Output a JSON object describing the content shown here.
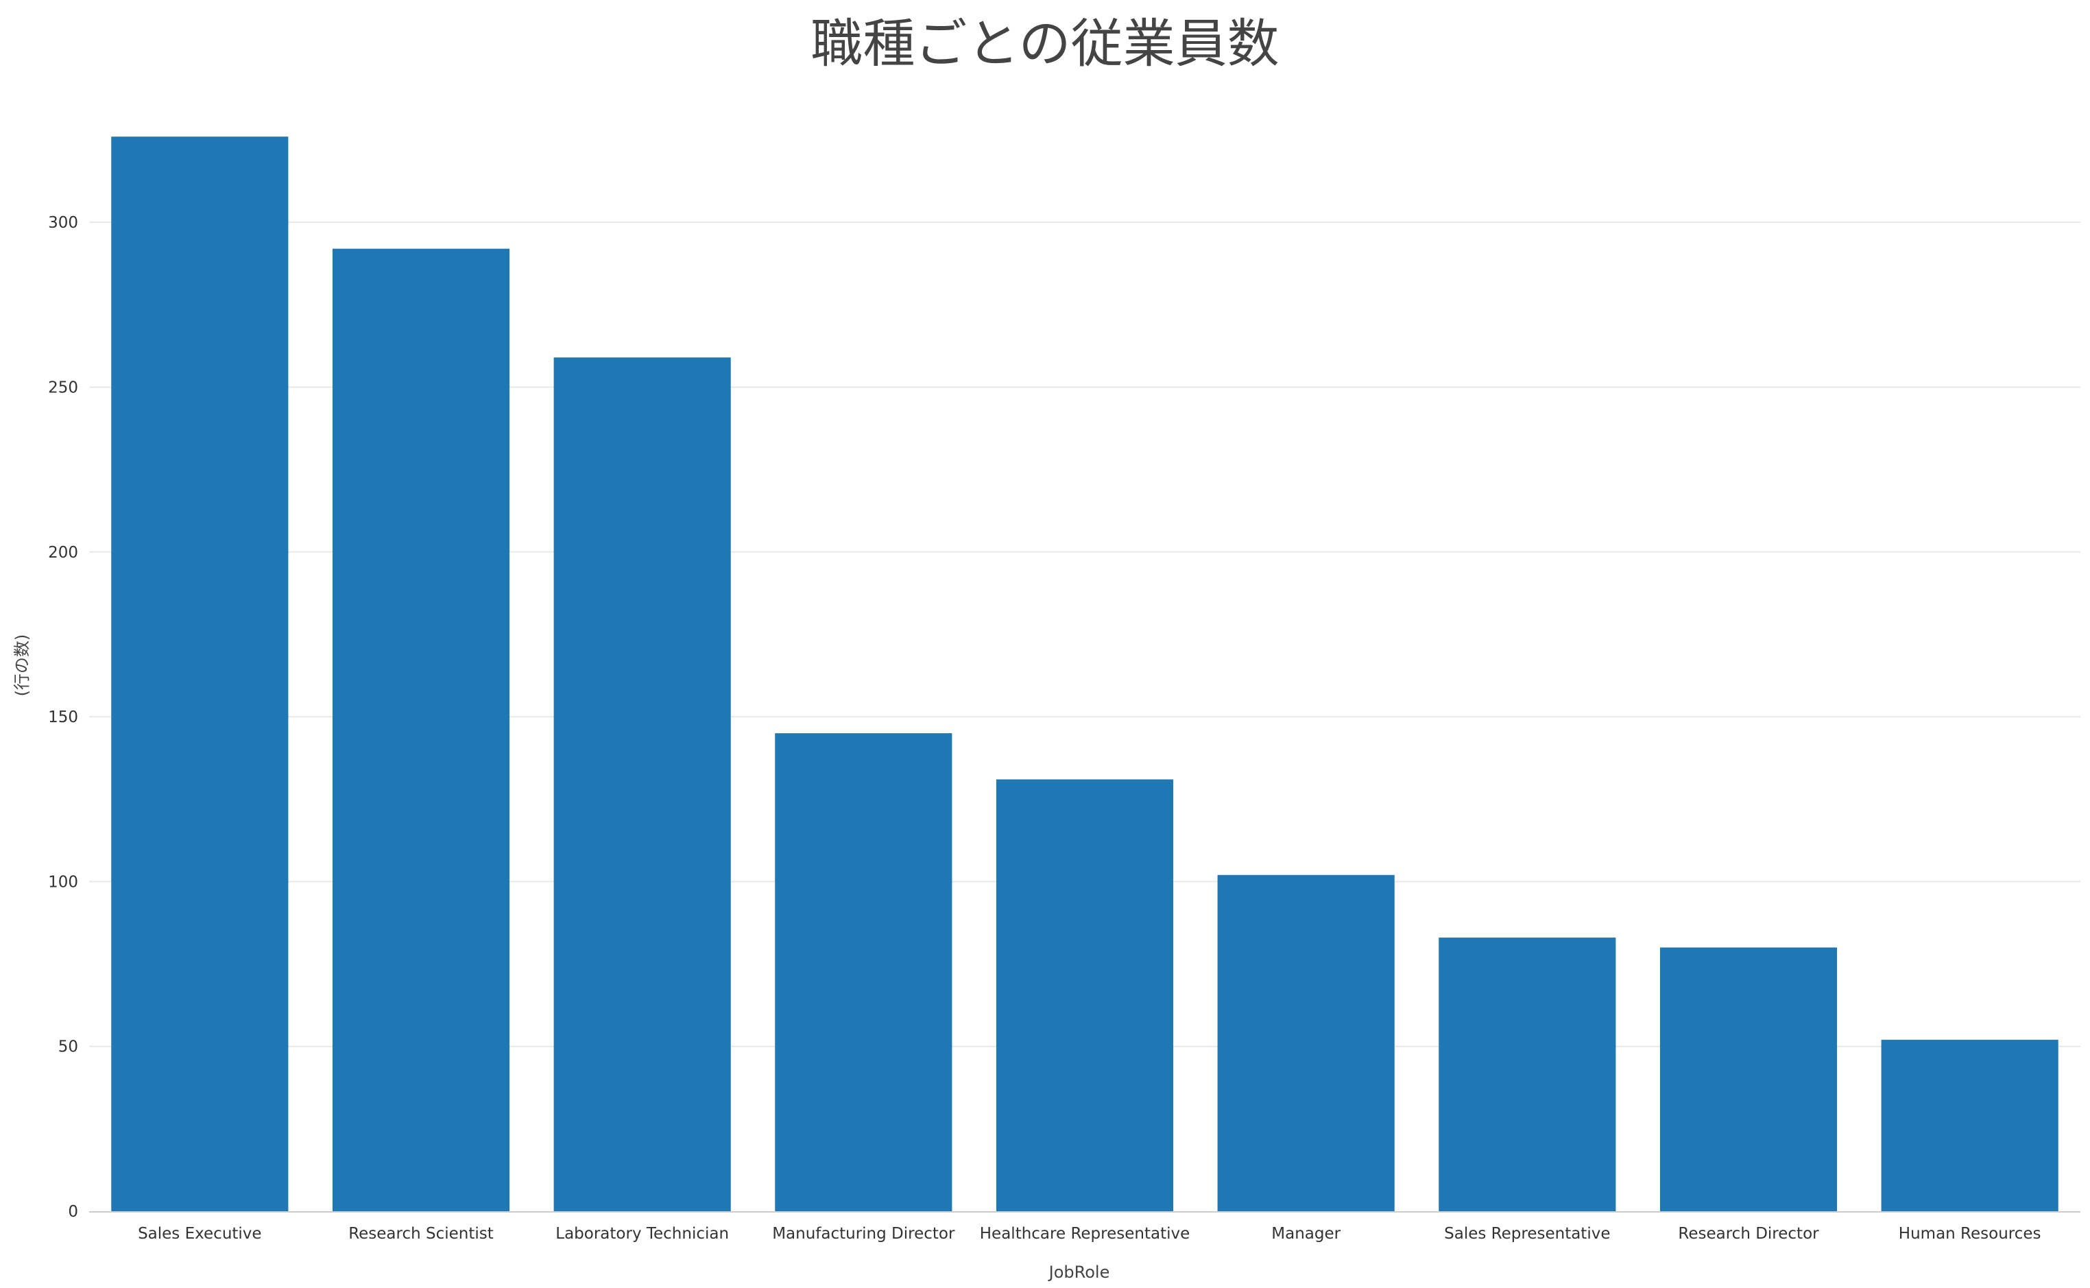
{
  "chart_data": {
    "type": "bar",
    "title": "職種ごとの従業員数",
    "xlabel": "JobRole",
    "ylabel": "(行の数)",
    "categories": [
      "Sales Executive",
      "Research Scientist",
      "Laboratory Technician",
      "Manufacturing Director",
      "Healthcare Representative",
      "Manager",
      "Sales Representative",
      "Research Director",
      "Human Resources"
    ],
    "values": [
      326,
      292,
      259,
      145,
      131,
      102,
      83,
      80,
      52
    ],
    "ylim": [
      0,
      330
    ],
    "yticks": [
      0,
      50,
      100,
      150,
      200,
      250,
      300
    ],
    "grid": true,
    "legend": "none",
    "bar_color": "#1f77b4"
  }
}
